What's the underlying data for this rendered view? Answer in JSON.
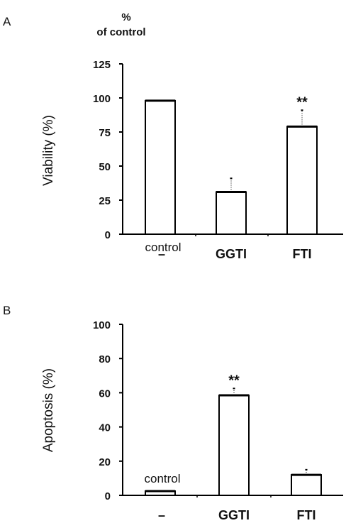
{
  "chart_data": [
    {
      "type": "bar",
      "panel": "A",
      "units_label": [
        "%",
        "of control"
      ],
      "ylabel": "Viability (%)",
      "ylim": [
        0,
        125
      ],
      "yticks": [
        "0",
        "25",
        "50",
        "75",
        "100",
        "125"
      ],
      "categories": [
        "–",
        "GGTI",
        "FTI"
      ],
      "control_label": "control",
      "values": [
        98,
        31,
        79
      ],
      "errors": [
        0,
        10,
        12
      ],
      "significance": [
        "",
        "",
        "**"
      ],
      "bar_color": "#ffffff",
      "line_color": "#000000"
    },
    {
      "type": "bar",
      "panel": "B",
      "ylabel": "Apoptosis (%)",
      "ylim": [
        0,
        100
      ],
      "yticks": [
        "0",
        "20",
        "40",
        "60",
        "80",
        "100"
      ],
      "categories": [
        "–",
        "GGTI",
        "FTI"
      ],
      "control_label": "control",
      "values": [
        2.5,
        58.5,
        12
      ],
      "errors": [
        0,
        4,
        3
      ],
      "significance": [
        "",
        "**",
        ""
      ],
      "bar_color": "#ffffff",
      "line_color": "#000000"
    }
  ]
}
